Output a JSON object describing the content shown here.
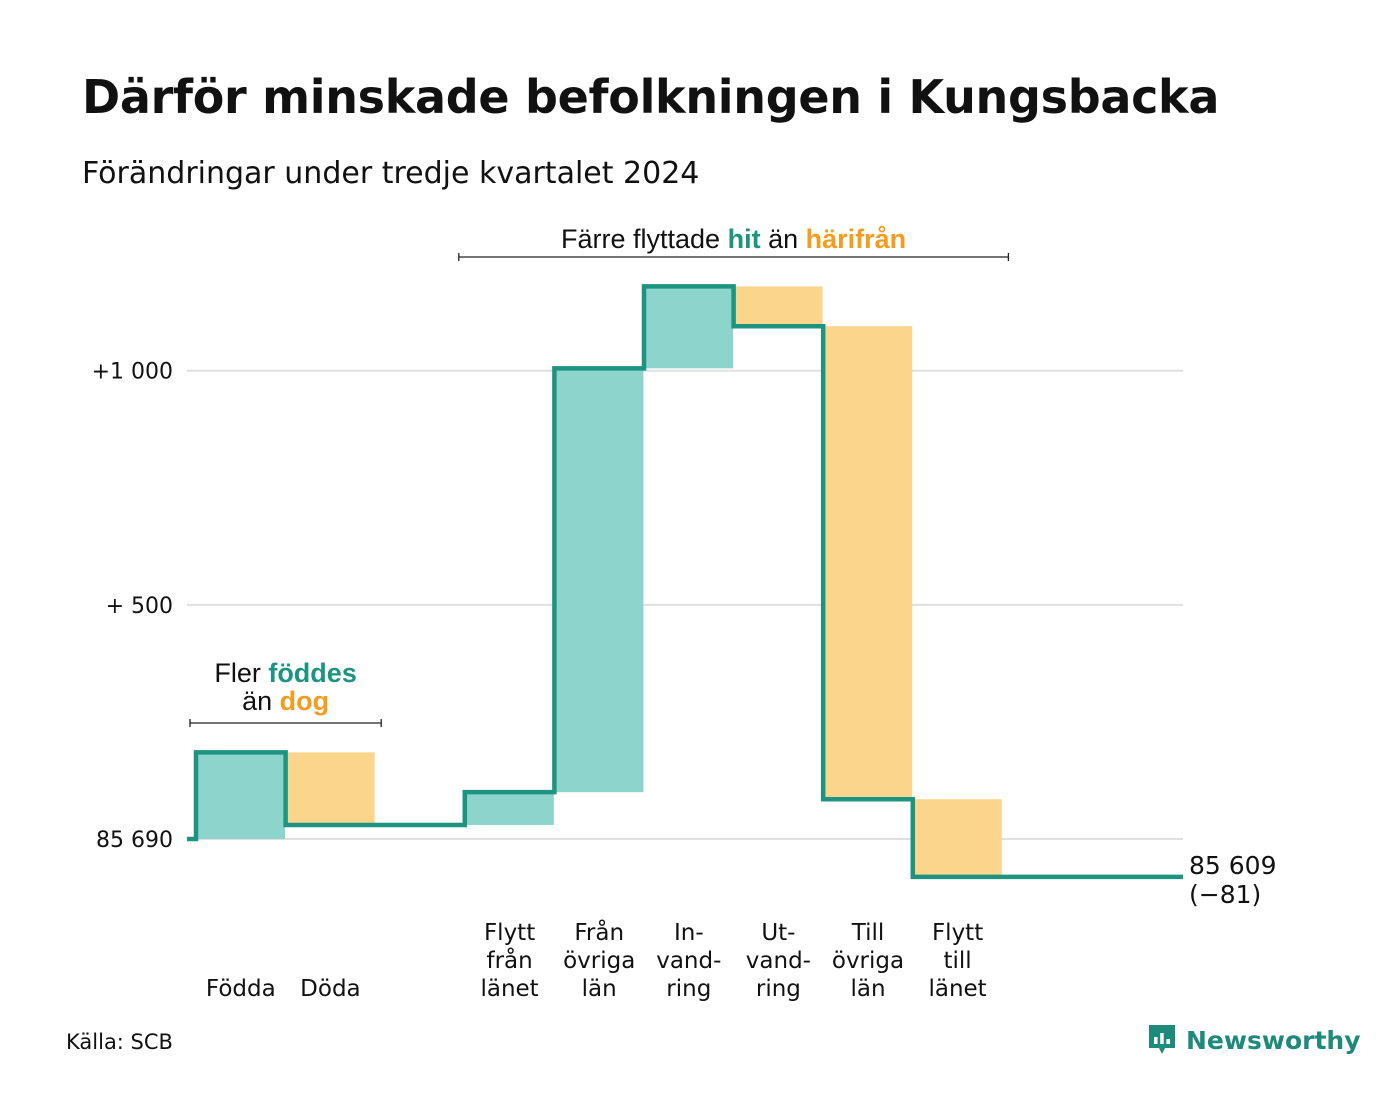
{
  "header": {
    "title": "Därför minskade befolkningen i Kungsbacka",
    "subtitle": "Förändringar under tredje kvartalet 2024"
  },
  "colors": {
    "increase": "#8dd5cc",
    "decrease": "#fbd58c",
    "line": "#1d9480",
    "accent_increase_text": "#1d9480",
    "accent_decrease_text": "#f39c1e",
    "grid": "#e0e0e0",
    "brand": "#1e8a7a"
  },
  "chart_data": {
    "type": "waterfall",
    "start_value": 85690,
    "end_value": 85609,
    "ylim": [
      -100,
      1200
    ],
    "y_ticks": [
      {
        "value": 0,
        "label": "85 690"
      },
      {
        "value": 500,
        "label": "+  500"
      },
      {
        "value": 1000,
        "label": "+1 000"
      }
    ],
    "steps": [
      {
        "category": "Födda",
        "label_lines": [
          "Födda"
        ],
        "change": 185,
        "kind": "increase"
      },
      {
        "category": "Döda",
        "label_lines": [
          "Döda"
        ],
        "change": -155,
        "kind": "decrease"
      },
      {
        "category": "",
        "label_lines": [],
        "change": 0,
        "kind": "gap"
      },
      {
        "category": "Flytt från länet",
        "label_lines": [
          "Flytt",
          "från",
          "länet"
        ],
        "change": 70,
        "kind": "increase"
      },
      {
        "category": "Från övriga län",
        "label_lines": [
          "Från",
          "övriga",
          "län"
        ],
        "change": 905,
        "kind": "increase"
      },
      {
        "category": "In-vand-ring",
        "label_lines": [
          "In-",
          "vand-",
          "ring"
        ],
        "change": 175,
        "kind": "increase"
      },
      {
        "category": "Ut-vand-ring",
        "label_lines": [
          "Ut-",
          "vand-",
          "ring"
        ],
        "change": -85,
        "kind": "decrease"
      },
      {
        "category": "Till övriga län",
        "label_lines": [
          "Till",
          "övriga",
          "län"
        ],
        "change": -1010,
        "kind": "decrease"
      },
      {
        "category": "Flytt till länet",
        "label_lines": [
          "Flytt",
          "till",
          "länet"
        ],
        "change": -166,
        "kind": "decrease"
      }
    ],
    "end_label": [
      "85 609",
      "(−81)"
    ],
    "annotations": [
      {
        "id": "births",
        "from_step": 0,
        "to_step": 1,
        "lines": [
          [
            {
              "text": "Fler ",
              "style": "plain"
            },
            {
              "text": "föddes",
              "style": "increase"
            }
          ],
          [
            {
              "text": "än ",
              "style": "plain"
            },
            {
              "text": "dog",
              "style": "decrease"
            }
          ]
        ]
      },
      {
        "id": "migration",
        "from_step": 3,
        "to_step": 8,
        "lines": [
          [
            {
              "text": "Färre flyttade ",
              "style": "plain"
            },
            {
              "text": "hit",
              "style": "increase"
            },
            {
              "text": " än ",
              "style": "plain"
            },
            {
              "text": "härifrån",
              "style": "decrease"
            }
          ]
        ]
      }
    ]
  },
  "footer": {
    "source": "Källa: SCB",
    "brand": "Newsworthy",
    "brand_icon": "newsworthy-logo-icon"
  }
}
